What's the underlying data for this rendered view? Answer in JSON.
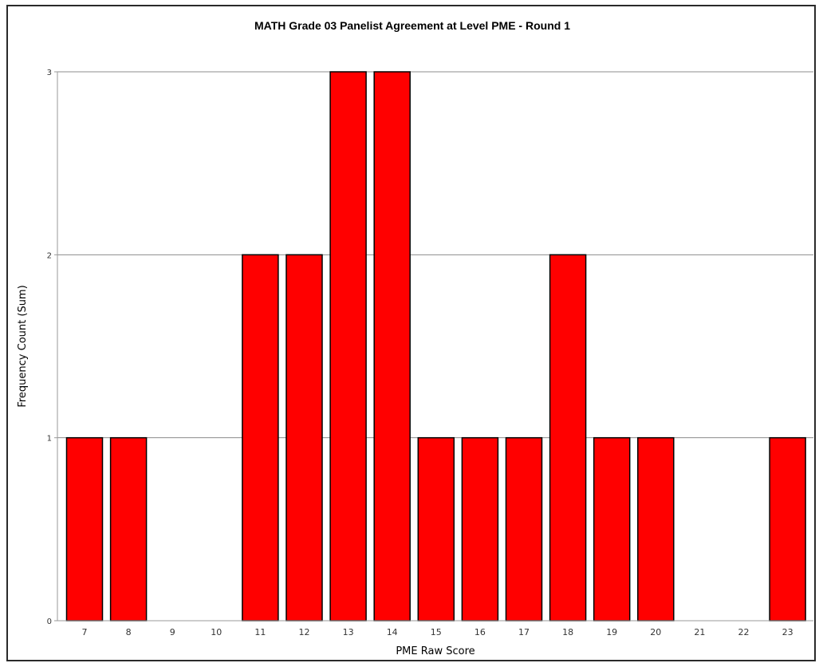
{
  "chart_data": {
    "type": "bar",
    "title": "MATH Grade 03 Panelist Agreement at Level PME - Round 1",
    "xlabel": "PME Raw Score",
    "ylabel": "Frequency Count (Sum)",
    "categories": [
      "7",
      "8",
      "9",
      "10",
      "11",
      "12",
      "13",
      "14",
      "15",
      "16",
      "17",
      "18",
      "19",
      "20",
      "21",
      "22",
      "23"
    ],
    "values": [
      1,
      1,
      0,
      0,
      2,
      2,
      3,
      3,
      1,
      1,
      1,
      2,
      1,
      1,
      0,
      0,
      1
    ],
    "ylim": [
      0,
      3
    ],
    "yticks": [
      "0",
      "1",
      "2",
      "3"
    ],
    "grid": true,
    "bar_color": "#ff0000",
    "bar_border_color": "#000000"
  }
}
